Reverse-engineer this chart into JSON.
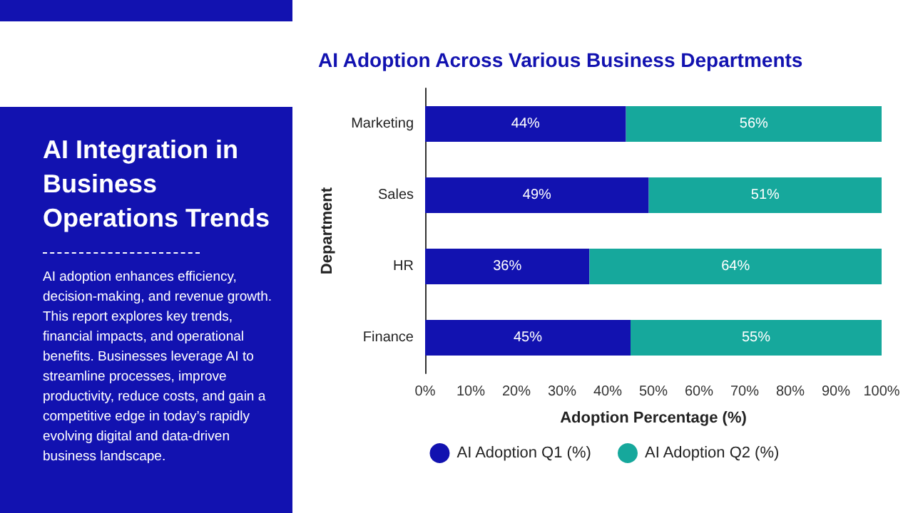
{
  "chart_data": {
    "type": "bar",
    "orientation": "horizontal",
    "stacked": true,
    "title": "AI Adoption Across Various Business Departments",
    "subtitle": "AI Integration in Business Operations Trends",
    "annotations": [
      "AI adoption enhances efficiency, decision-making, and revenue growth. This report explores key trends, financial impacts, and operational benefits. Businesses leverage AI to streamline processes, improve productivity, reduce costs, and gain a competitive edge in today’s rapidly evolving digital and data-driven business landscape."
    ],
    "xlabel": "Adoption Percentage (%)",
    "ylabel": "Department",
    "categories": [
      "Marketing",
      "Sales",
      "HR",
      "Finance"
    ],
    "series": [
      {
        "name": "AI Adoption Q1 (%)",
        "color": "#1212b0",
        "values": [
          44,
          49,
          36,
          45
        ],
        "value_labels": [
          "44%",
          "49%",
          "36%",
          "45%"
        ]
      },
      {
        "name": "AI Adoption Q2 (%)",
        "color": "#16a89c",
        "values": [
          56,
          51,
          64,
          55
        ],
        "value_labels": [
          "56%",
          "51%",
          "64%",
          "55%"
        ]
      }
    ],
    "xlim": [
      0,
      100
    ],
    "xticks": [
      {
        "value": 0,
        "label": "0%"
      },
      {
        "value": 10,
        "label": "10%"
      },
      {
        "value": 20,
        "label": "20%"
      },
      {
        "value": 30,
        "label": "30%"
      },
      {
        "value": 40,
        "label": "40%"
      },
      {
        "value": 50,
        "label": "50%"
      },
      {
        "value": 60,
        "label": "60%"
      },
      {
        "value": 70,
        "label": "70%"
      },
      {
        "value": 80,
        "label": "80%"
      },
      {
        "value": 90,
        "label": "90%"
      },
      {
        "value": 100,
        "label": "100%"
      }
    ],
    "legend": "bottom"
  }
}
